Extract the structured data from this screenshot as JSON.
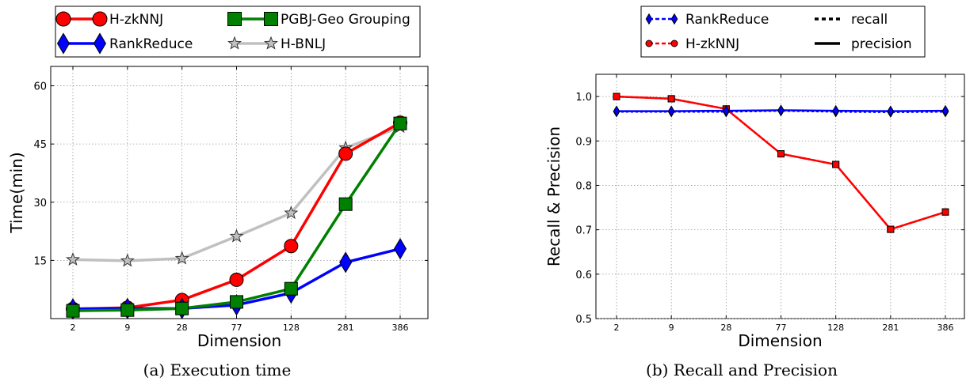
{
  "chart_data": [
    {
      "type": "line",
      "caption": "(a) Execution time",
      "xlabel": "Dimension",
      "ylabel": "Time(min)",
      "categories": [
        "2",
        "9",
        "28",
        "77",
        "128",
        "281",
        "386"
      ],
      "ylim": [
        0,
        65
      ],
      "yticks": [
        "15",
        "30",
        "45",
        "60"
      ],
      "ytick_values": [
        15,
        30,
        45,
        60
      ],
      "grid": true,
      "legend_position": "top",
      "series": [
        {
          "name": "H-zkNNJ",
          "color": "#ff0000",
          "marker": "circle",
          "values": [
            2.5,
            2.8,
            4.8,
            10.0,
            18.7,
            42.5,
            50.5
          ]
        },
        {
          "name": "RankReduce",
          "color": "#0000ff",
          "marker": "diamond",
          "values": [
            2.5,
            2.6,
            2.6,
            3.5,
            6.6,
            14.5,
            18.0
          ]
        },
        {
          "name": "PGBJ-Geo Grouping",
          "color": "#008000",
          "marker": "square",
          "values": [
            2.0,
            2.2,
            2.6,
            4.3,
            7.7,
            29.5,
            50.3
          ]
        },
        {
          "name": "H-BNLJ",
          "color": "#c0c0c0",
          "marker": "star",
          "values": [
            15.2,
            14.9,
            15.5,
            21.2,
            27.2,
            44.0,
            49.4
          ]
        }
      ]
    },
    {
      "type": "line",
      "caption": "(b) Recall and Precision",
      "xlabel": "Dimension",
      "ylabel": "Recall & Precision",
      "categories": [
        "2",
        "9",
        "28",
        "77",
        "128",
        "281",
        "386"
      ],
      "ylim": [
        0.5,
        1.05
      ],
      "yticks": [
        "0.5",
        "0.6",
        "0.7",
        "0.8",
        "0.9",
        "1.0"
      ],
      "ytick_values": [
        0.5,
        0.6,
        0.7,
        0.8,
        0.9,
        1.0
      ],
      "grid": true,
      "legend_position": "top",
      "legend_styles": [
        {
          "name": "RankReduce",
          "color": "#0000ff",
          "marker": "diamond",
          "line": "dashed"
        },
        {
          "name": "recall",
          "color": "#000000",
          "marker": "none",
          "line": "dotted"
        },
        {
          "name": "H-zkNNJ",
          "color": "#ff0000",
          "marker": "circle",
          "line": "dashed"
        },
        {
          "name": "precision",
          "color": "#000000",
          "marker": "none",
          "line": "solid"
        }
      ],
      "series": [
        {
          "name": "RankReduce",
          "metric": "recall",
          "color": "#0000ff",
          "marker": "diamond",
          "line": "dotted",
          "values": [
            0.966,
            0.966,
            0.966,
            0.968,
            0.966,
            0.965,
            0.966
          ]
        },
        {
          "name": "RankReduce",
          "metric": "precision",
          "color": "#0000ff",
          "marker": "diamond",
          "line": "solid",
          "values": [
            0.967,
            0.967,
            0.968,
            0.969,
            0.968,
            0.967,
            0.968
          ]
        },
        {
          "name": "H-zkNNJ",
          "metric": "recall",
          "color": "#ff0000",
          "marker": "square",
          "line": "dotted",
          "values": [
            1.0,
            0.995,
            0.972,
            0.871,
            0.847,
            0.701,
            0.74
          ]
        },
        {
          "name": "H-zkNNJ",
          "metric": "precision",
          "color": "#ff0000",
          "marker": "square",
          "line": "solid",
          "values": [
            1.0,
            0.995,
            0.972,
            0.871,
            0.847,
            0.701,
            0.74
          ]
        }
      ]
    }
  ]
}
